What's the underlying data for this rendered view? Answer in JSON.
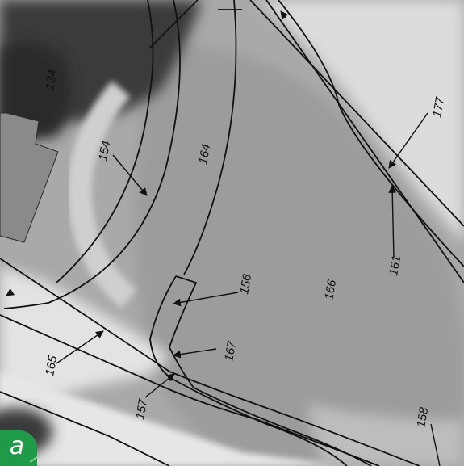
{
  "panel": {
    "label": "a"
  },
  "parcels": [
    {
      "id": "p134",
      "label": "134"
    },
    {
      "id": "p154",
      "label": "154"
    },
    {
      "id": "p156",
      "label": "156"
    },
    {
      "id": "p157",
      "label": "157"
    },
    {
      "id": "p158",
      "label": "158"
    },
    {
      "id": "p161",
      "label": "161"
    },
    {
      "id": "p164",
      "label": "164"
    },
    {
      "id": "p165",
      "label": "165"
    },
    {
      "id": "p166",
      "label": "166"
    },
    {
      "id": "p167",
      "label": "167"
    },
    {
      "id": "p177",
      "label": "177"
    }
  ],
  "colors": {
    "line": "#111111",
    "badge": "#1f9a48",
    "dark_vegetation": "#3a3a3a",
    "field": "#9a9a9a",
    "road": "#e2e2e2"
  }
}
